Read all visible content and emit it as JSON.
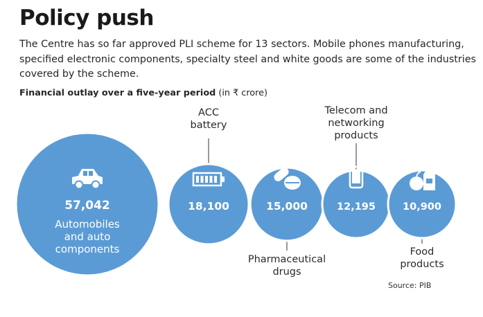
{
  "title": "Policy push",
  "subtitle": "The Centre has so far approved PLI scheme for 13 sectors. Mobile phones manufacturing, specified electronic components, specialty steel and white goods are some of the industries covered by the scheme.",
  "caption_bold": "Financial outlay over a five-year period",
  "caption_unit": "(in ₹ crore)",
  "source": "Source: PIB",
  "colors": {
    "bubble": "#5b9bd5",
    "bubble_ring": "#ffffff",
    "connector": "#555555",
    "text": "#222222"
  },
  "chart_data": {
    "type": "bubble",
    "unit": "₹ crore",
    "categories": [
      "Automobiles and auto components",
      "ACC battery",
      "Pharmaceutical drugs",
      "Telecom and networking products",
      "Food products"
    ],
    "values": [
      57042,
      18100,
      15000,
      12195,
      10900
    ],
    "value_labels": [
      "57,042",
      "18,100",
      "15,000",
      "12,195",
      "10,900"
    ],
    "label_lines": [
      [
        "Automobiles",
        "and auto",
        "components"
      ],
      [
        "ACC",
        "battery"
      ],
      [
        "Pharmaceutical",
        "drugs"
      ],
      [
        "Telecom and",
        "networking",
        "products"
      ],
      [
        "Food",
        "products"
      ]
    ],
    "label_position": [
      "inside",
      "above",
      "below",
      "above",
      "below"
    ],
    "icons": [
      "car-icon",
      "battery-icon",
      "pills-icon",
      "smartphone-icon",
      "food-icon"
    ]
  }
}
